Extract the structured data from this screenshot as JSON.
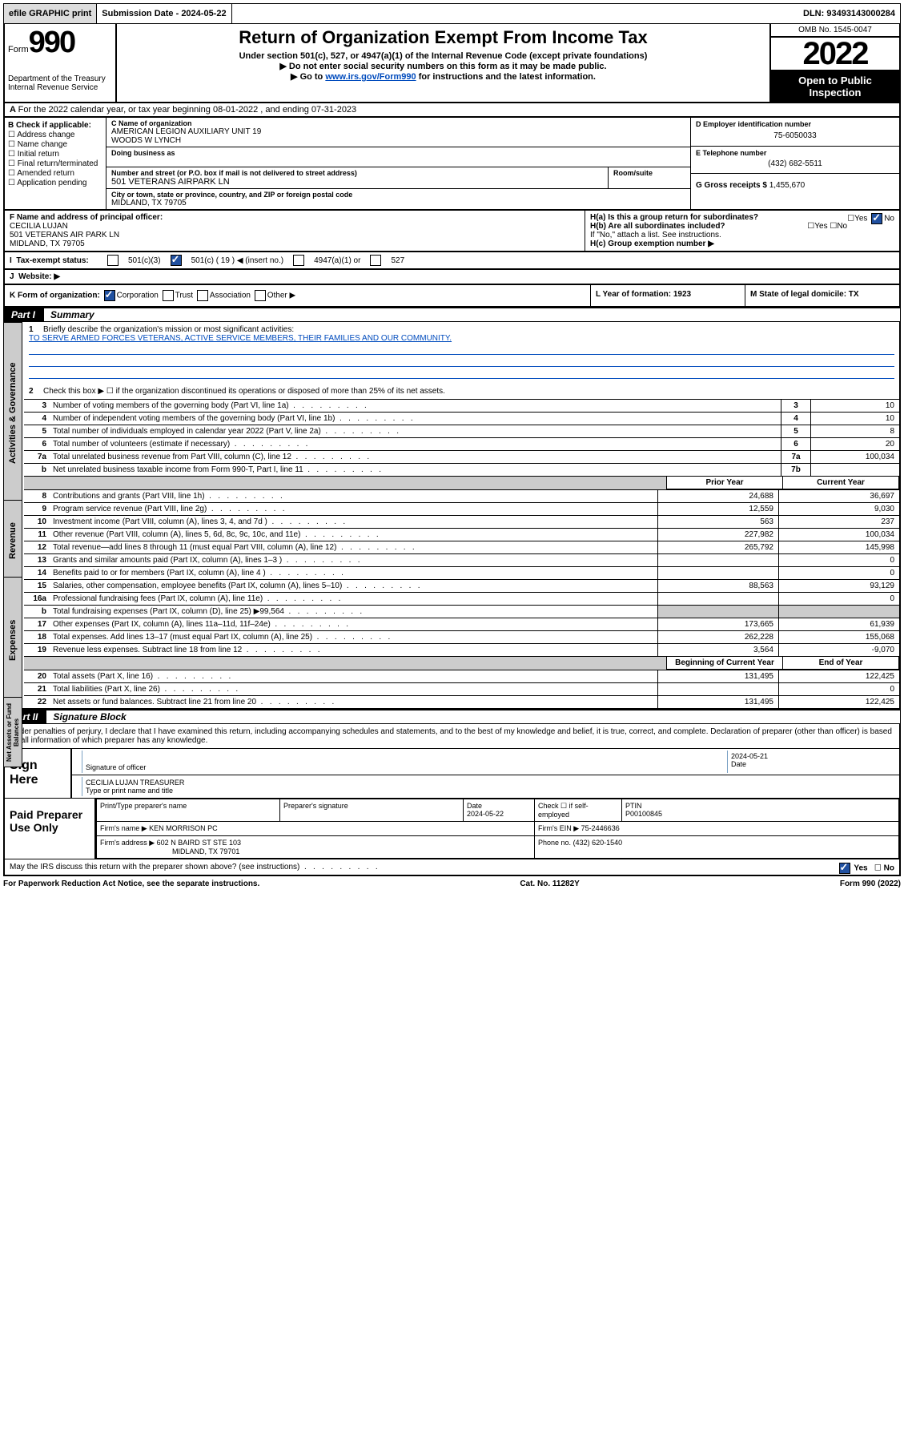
{
  "topbar": {
    "efile": "efile GRAPHIC print",
    "subdate_label": "Submission Date - 2024-05-22",
    "dln": "DLN: 93493143000284"
  },
  "header": {
    "form_word": "Form",
    "form_num": "990",
    "dept": "Department of the Treasury",
    "irs": "Internal Revenue Service",
    "title": "Return of Organization Exempt From Income Tax",
    "sub1": "Under section 501(c), 527, or 4947(a)(1) of the Internal Revenue Code (except private foundations)",
    "sub2": "Do not enter social security numbers on this form as it may be made public.",
    "sub3_pre": "Go to ",
    "sub3_link": "www.irs.gov/Form990",
    "sub3_post": " for instructions and the latest information.",
    "omb": "OMB No. 1545-0047",
    "year": "2022",
    "open": "Open to Public Inspection"
  },
  "rowA": "For the 2022 calendar year, or tax year beginning 08-01-2022   , and ending 07-31-2023",
  "B": {
    "hdr": "B Check if applicable:",
    "opts": [
      "Address change",
      "Name change",
      "Initial return",
      "Final return/terminated",
      "Amended return",
      "Application pending"
    ]
  },
  "C": {
    "name_label": "C Name of organization",
    "name1": "AMERICAN LEGION AUXILIARY UNIT 19",
    "name2": "WOODS W LYNCH",
    "dba_label": "Doing business as",
    "addr_label": "Number and street (or P.O. box if mail is not delivered to street address)",
    "addr": "501 VETERANS AIRPARK LN",
    "room_label": "Room/suite",
    "city_label": "City or town, state or province, country, and ZIP or foreign postal code",
    "city": "MIDLAND, TX  79705"
  },
  "DE": {
    "d_label": "D Employer identification number",
    "ein": "75-6050033",
    "e_label": "E Telephone number",
    "phone": "(432) 682-5511",
    "g_label": "G Gross receipts $",
    "g_val": "1,455,670"
  },
  "F": {
    "label": "F Name and address of principal officer:",
    "name": "CECILIA LUJAN",
    "addr1": "501 VETERANS AIR PARK LN",
    "addr2": "MIDLAND, TX  79705"
  },
  "H": {
    "a": "H(a)  Is this a group return for subordinates?",
    "b": "H(b)  Are all subordinates included?",
    "ifno": "If \"No,\" attach a list. See instructions.",
    "c": "H(c)  Group exemption number ▶",
    "yes": "Yes",
    "no": "No"
  },
  "I": {
    "label": "Tax-exempt status:",
    "c3": "501(c)(3)",
    "c": "501(c) ( 19 ) ◀ (insert no.)",
    "a1": "4947(a)(1) or",
    "527": "527"
  },
  "J": {
    "label": "Website: ▶"
  },
  "K": {
    "text": "K Form of organization:",
    "opts": [
      "Corporation",
      "Trust",
      "Association",
      "Other ▶"
    ],
    "L": "L Year of formation: 1923",
    "M": "M State of legal domicile: TX"
  },
  "part1": {
    "tag": "Part I",
    "title": "Summary",
    "line1_label": "Briefly describe the organization's mission or most significant activities:",
    "mission": "TO SERVE ARMED FORCES VETERANS, ACTIVE SERVICE MEMBERS, THEIR FAMILIES AND OUR COMMUNITY.",
    "line2": "Check this box ▶ ☐  if the organization discontinued its operations or disposed of more than 25% of its net assets.",
    "rows_gov": [
      {
        "n": "3",
        "t": "Number of voting members of the governing body (Part VI, line 1a)",
        "box": "3",
        "v": "10"
      },
      {
        "n": "4",
        "t": "Number of independent voting members of the governing body (Part VI, line 1b)",
        "box": "4",
        "v": "10"
      },
      {
        "n": "5",
        "t": "Total number of individuals employed in calendar year 2022 (Part V, line 2a)",
        "box": "5",
        "v": "8"
      },
      {
        "n": "6",
        "t": "Total number of volunteers (estimate if necessary)",
        "box": "6",
        "v": "20"
      },
      {
        "n": "7a",
        "t": "Total unrelated business revenue from Part VIII, column (C), line 12",
        "box": "7a",
        "v": "100,034"
      },
      {
        "n": "b",
        "t": "Net unrelated business taxable income from Form 990-T, Part I, line 11",
        "box": "7b",
        "v": ""
      }
    ],
    "col_prior": "Prior Year",
    "col_curr": "Current Year",
    "rows_rev": [
      {
        "n": "8",
        "t": "Contributions and grants (Part VIII, line 1h)",
        "p": "24,688",
        "c": "36,697"
      },
      {
        "n": "9",
        "t": "Program service revenue (Part VIII, line 2g)",
        "p": "12,559",
        "c": "9,030"
      },
      {
        "n": "10",
        "t": "Investment income (Part VIII, column (A), lines 3, 4, and 7d )",
        "p": "563",
        "c": "237"
      },
      {
        "n": "11",
        "t": "Other revenue (Part VIII, column (A), lines 5, 6d, 8c, 9c, 10c, and 11e)",
        "p": "227,982",
        "c": "100,034"
      },
      {
        "n": "12",
        "t": "Total revenue—add lines 8 through 11 (must equal Part VIII, column (A), line 12)",
        "p": "265,792",
        "c": "145,998"
      }
    ],
    "rows_exp": [
      {
        "n": "13",
        "t": "Grants and similar amounts paid (Part IX, column (A), lines 1–3 )",
        "p": "",
        "c": "0"
      },
      {
        "n": "14",
        "t": "Benefits paid to or for members (Part IX, column (A), line 4 )",
        "p": "",
        "c": "0"
      },
      {
        "n": "15",
        "t": "Salaries, other compensation, employee benefits (Part IX, column (A), lines 5–10)",
        "p": "88,563",
        "c": "93,129"
      },
      {
        "n": "16a",
        "t": "Professional fundraising fees (Part IX, column (A), line 11e)",
        "p": "",
        "c": "0"
      },
      {
        "n": "b",
        "t": "Total fundraising expenses (Part IX, column (D), line 25) ▶99,564",
        "p": "shade",
        "c": "shade"
      },
      {
        "n": "17",
        "t": "Other expenses (Part IX, column (A), lines 11a–11d, 11f–24e)",
        "p": "173,665",
        "c": "61,939"
      },
      {
        "n": "18",
        "t": "Total expenses. Add lines 13–17 (must equal Part IX, column (A), line 25)",
        "p": "262,228",
        "c": "155,068"
      },
      {
        "n": "19",
        "t": "Revenue less expenses. Subtract line 18 from line 12",
        "p": "3,564",
        "c": "-9,070"
      }
    ],
    "col_beg": "Beginning of Current Year",
    "col_end": "End of Year",
    "rows_net": [
      {
        "n": "20",
        "t": "Total assets (Part X, line 16)",
        "p": "131,495",
        "c": "122,425"
      },
      {
        "n": "21",
        "t": "Total liabilities (Part X, line 26)",
        "p": "",
        "c": "0"
      },
      {
        "n": "22",
        "t": "Net assets or fund balances. Subtract line 21 from line 20",
        "p": "131,495",
        "c": "122,425"
      }
    ]
  },
  "part2": {
    "tag": "Part II",
    "title": "Signature Block",
    "declare": "Under penalties of perjury, I declare that I have examined this return, including accompanying schedules and statements, and to the best of my knowledge and belief, it is true, correct, and complete. Declaration of preparer (other than officer) is based on all information of which preparer has any knowledge.",
    "sign_here": "Sign Here",
    "sig_officer": "Signature of officer",
    "date": "Date",
    "date_val": "2024-05-21",
    "name_title": "CECILIA LUJAN  TREASURER",
    "name_title_label": "Type or print name and title",
    "paid_label": "Paid Preparer Use Only",
    "p_name": "Print/Type preparer's name",
    "p_sig": "Preparer's signature",
    "p_date_lbl": "Date",
    "p_date": "2024-05-22",
    "p_check": "Check ☐ if self-employed",
    "ptin_lbl": "PTIN",
    "ptin": "P00100845",
    "firm_name_lbl": "Firm's name   ▶",
    "firm_name": "KEN MORRISON PC",
    "firm_ein_lbl": "Firm's EIN ▶",
    "firm_ein": "75-2446636",
    "firm_addr_lbl": "Firm's address ▶",
    "firm_addr1": "602 N BAIRD ST STE 103",
    "firm_addr2": "MIDLAND, TX  79701",
    "firm_phone_lbl": "Phone no.",
    "firm_phone": "(432) 620-1540",
    "may_irs": "May the IRS discuss this return with the preparer shown above? (see instructions)",
    "footer_left": "For Paperwork Reduction Act Notice, see the separate instructions.",
    "footer_mid": "Cat. No. 11282Y",
    "footer_right": "Form 990 (2022)"
  },
  "vtabs": {
    "gov": "Activities & Governance",
    "rev": "Revenue",
    "exp": "Expenses",
    "net": "Net Assets or Fund Balances"
  }
}
